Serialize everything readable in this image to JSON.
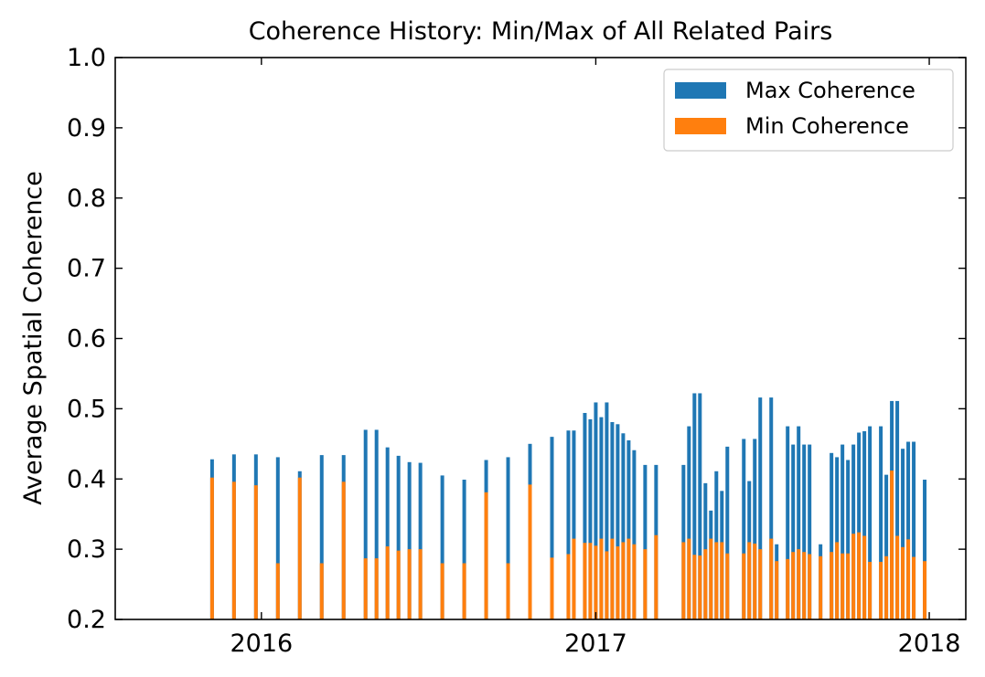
{
  "chart_data": {
    "type": "bar",
    "stacked": false,
    "title": "Coherence History: Min/Max of All Related Pairs",
    "xlabel": "",
    "ylabel": "Average Spatial Coherence",
    "ylim": [
      0.2,
      1.0
    ],
    "xlim": [
      "2015-07-25",
      "2018-02-10"
    ],
    "yticks": [
      "0.2",
      "0.3",
      "0.4",
      "0.5",
      "0.6",
      "0.7",
      "0.8",
      "0.9",
      "1.0"
    ],
    "xticks": [
      {
        "date": "2016-01-01",
        "label": "2016"
      },
      {
        "date": "2017-01-01",
        "label": "2017"
      },
      {
        "date": "2018-01-01",
        "label": "2018"
      }
    ],
    "grid": false,
    "legend_position": "top-right",
    "x": [
      "2015-11-08",
      "2015-12-02",
      "2015-12-26",
      "2016-01-19",
      "2016-02-12",
      "2016-03-07",
      "2016-03-31",
      "2016-04-24",
      "2016-05-06",
      "2016-05-18",
      "2016-05-30",
      "2016-06-11",
      "2016-06-23",
      "2016-07-17",
      "2016-08-10",
      "2016-09-03",
      "2016-09-27",
      "2016-10-21",
      "2016-11-14",
      "2016-12-02",
      "2016-12-08",
      "2016-12-20",
      "2016-12-26",
      "2017-01-01",
      "2017-01-07",
      "2017-01-13",
      "2017-01-19",
      "2017-01-25",
      "2017-01-31",
      "2017-02-06",
      "2017-02-12",
      "2017-02-24",
      "2017-03-08",
      "2017-04-07",
      "2017-04-13",
      "2017-04-19",
      "2017-04-25",
      "2017-05-01",
      "2017-05-07",
      "2017-05-13",
      "2017-05-19",
      "2017-05-25",
      "2017-06-12",
      "2017-06-18",
      "2017-06-24",
      "2017-06-30",
      "2017-07-12",
      "2017-07-18",
      "2017-07-30",
      "2017-08-05",
      "2017-08-11",
      "2017-08-17",
      "2017-08-23",
      "2017-09-04",
      "2017-09-16",
      "2017-09-22",
      "2017-09-28",
      "2017-10-04",
      "2017-10-10",
      "2017-10-16",
      "2017-10-22",
      "2017-10-28",
      "2017-11-09",
      "2017-11-15",
      "2017-11-21",
      "2017-11-27",
      "2017-12-03",
      "2017-12-09",
      "2017-12-15",
      "2017-12-27"
    ],
    "series": [
      {
        "name": "Max Coherence",
        "color": "#1f77b4",
        "values": [
          0.428,
          0.435,
          0.435,
          0.431,
          0.411,
          0.434,
          0.434,
          0.47,
          0.47,
          0.445,
          0.433,
          0.424,
          0.423,
          0.405,
          0.399,
          0.427,
          0.431,
          0.45,
          0.46,
          0.469,
          0.469,
          0.494,
          0.485,
          0.509,
          0.488,
          0.509,
          0.481,
          0.478,
          0.465,
          0.455,
          0.441,
          0.42,
          0.42,
          0.42,
          0.475,
          0.522,
          0.522,
          0.394,
          0.355,
          0.411,
          0.383,
          0.446,
          0.457,
          0.397,
          0.457,
          0.516,
          0.516,
          0.307,
          0.475,
          0.449,
          0.475,
          0.449,
          0.449,
          0.307,
          0.437,
          0.431,
          0.449,
          0.427,
          0.449,
          0.466,
          0.468,
          0.475,
          0.475,
          0.406,
          0.511,
          0.511,
          0.443,
          0.453,
          0.453,
          0.399
        ]
      },
      {
        "name": "Min Coherence",
        "color": "#ff7f0e",
        "values": [
          0.402,
          0.396,
          0.391,
          0.28,
          0.402,
          0.28,
          0.396,
          0.287,
          0.287,
          0.304,
          0.298,
          0.3,
          0.3,
          0.28,
          0.28,
          0.381,
          0.28,
          0.392,
          0.288,
          0.293,
          0.315,
          0.309,
          0.309,
          0.305,
          0.315,
          0.297,
          0.315,
          0.304,
          0.31,
          0.315,
          0.307,
          0.3,
          0.32,
          0.31,
          0.315,
          0.292,
          0.291,
          0.3,
          0.315,
          0.31,
          0.31,
          0.294,
          0.294,
          0.31,
          0.308,
          0.3,
          0.315,
          0.283,
          0.286,
          0.296,
          0.3,
          0.296,
          0.293,
          0.29,
          0.296,
          0.31,
          0.294,
          0.294,
          0.322,
          0.324,
          0.319,
          0.282,
          0.282,
          0.29,
          0.412,
          0.319,
          0.303,
          0.314,
          0.289,
          0.283
        ]
      }
    ]
  }
}
